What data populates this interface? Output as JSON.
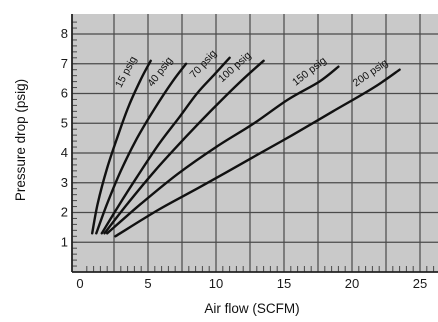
{
  "chart_data": {
    "type": "line",
    "title": "",
    "xlabel": "Air flow (SCFM)",
    "ylabel": "Pressure drop (psig)",
    "xlim": [
      0,
      25
    ],
    "ylim": [
      0,
      8
    ],
    "x_ticks": [
      0,
      5,
      10,
      15,
      20,
      25
    ],
    "y_ticks": [
      1,
      2,
      3,
      4,
      5,
      6,
      7,
      8
    ],
    "grid": true,
    "legend": "none (series labelled inline along the curves)",
    "colors": {
      "background": "#ffffff",
      "plot_area": "#c9c9c9",
      "grid": "#4a4a4a",
      "curve": "#111111"
    },
    "series": [
      {
        "name": "15 psig",
        "x": [
          0.9,
          1.3,
          2.0,
          2.8,
          3.6,
          4.5,
          5.2
        ],
        "y": [
          1.3,
          2.3,
          3.5,
          4.6,
          5.6,
          6.5,
          7.1
        ]
      },
      {
        "name": "40 psig",
        "x": [
          1.2,
          2.0,
          3.0,
          4.2,
          5.5,
          6.8,
          7.8
        ],
        "y": [
          1.3,
          2.3,
          3.4,
          4.5,
          5.5,
          6.4,
          7.0
        ]
      },
      {
        "name": "70 psig",
        "x": [
          1.6,
          2.8,
          4.2,
          5.8,
          7.3,
          8.6,
          9.8,
          11.0
        ],
        "y": [
          1.3,
          2.2,
          3.2,
          4.3,
          5.2,
          6.0,
          6.6,
          7.2
        ]
      },
      {
        "name": "100 psig",
        "x": [
          1.8,
          3.5,
          5.5,
          7.7,
          9.8,
          11.8,
          13.5
        ],
        "y": [
          1.3,
          2.3,
          3.4,
          4.5,
          5.5,
          6.4,
          7.1
        ]
      },
      {
        "name": "150 psig",
        "x": [
          2.0,
          4.5,
          7.2,
          10.0,
          12.8,
          15.3,
          17.6,
          19.0
        ],
        "y": [
          1.3,
          2.3,
          3.3,
          4.2,
          5.0,
          5.8,
          6.4,
          6.9
        ]
      },
      {
        "name": "200 psig",
        "x": [
          2.6,
          5.8,
          9.0,
          12.5,
          15.6,
          18.6,
          21.6,
          23.5
        ],
        "y": [
          1.2,
          2.1,
          2.9,
          3.8,
          4.6,
          5.4,
          6.2,
          6.8
        ]
      }
    ]
  }
}
